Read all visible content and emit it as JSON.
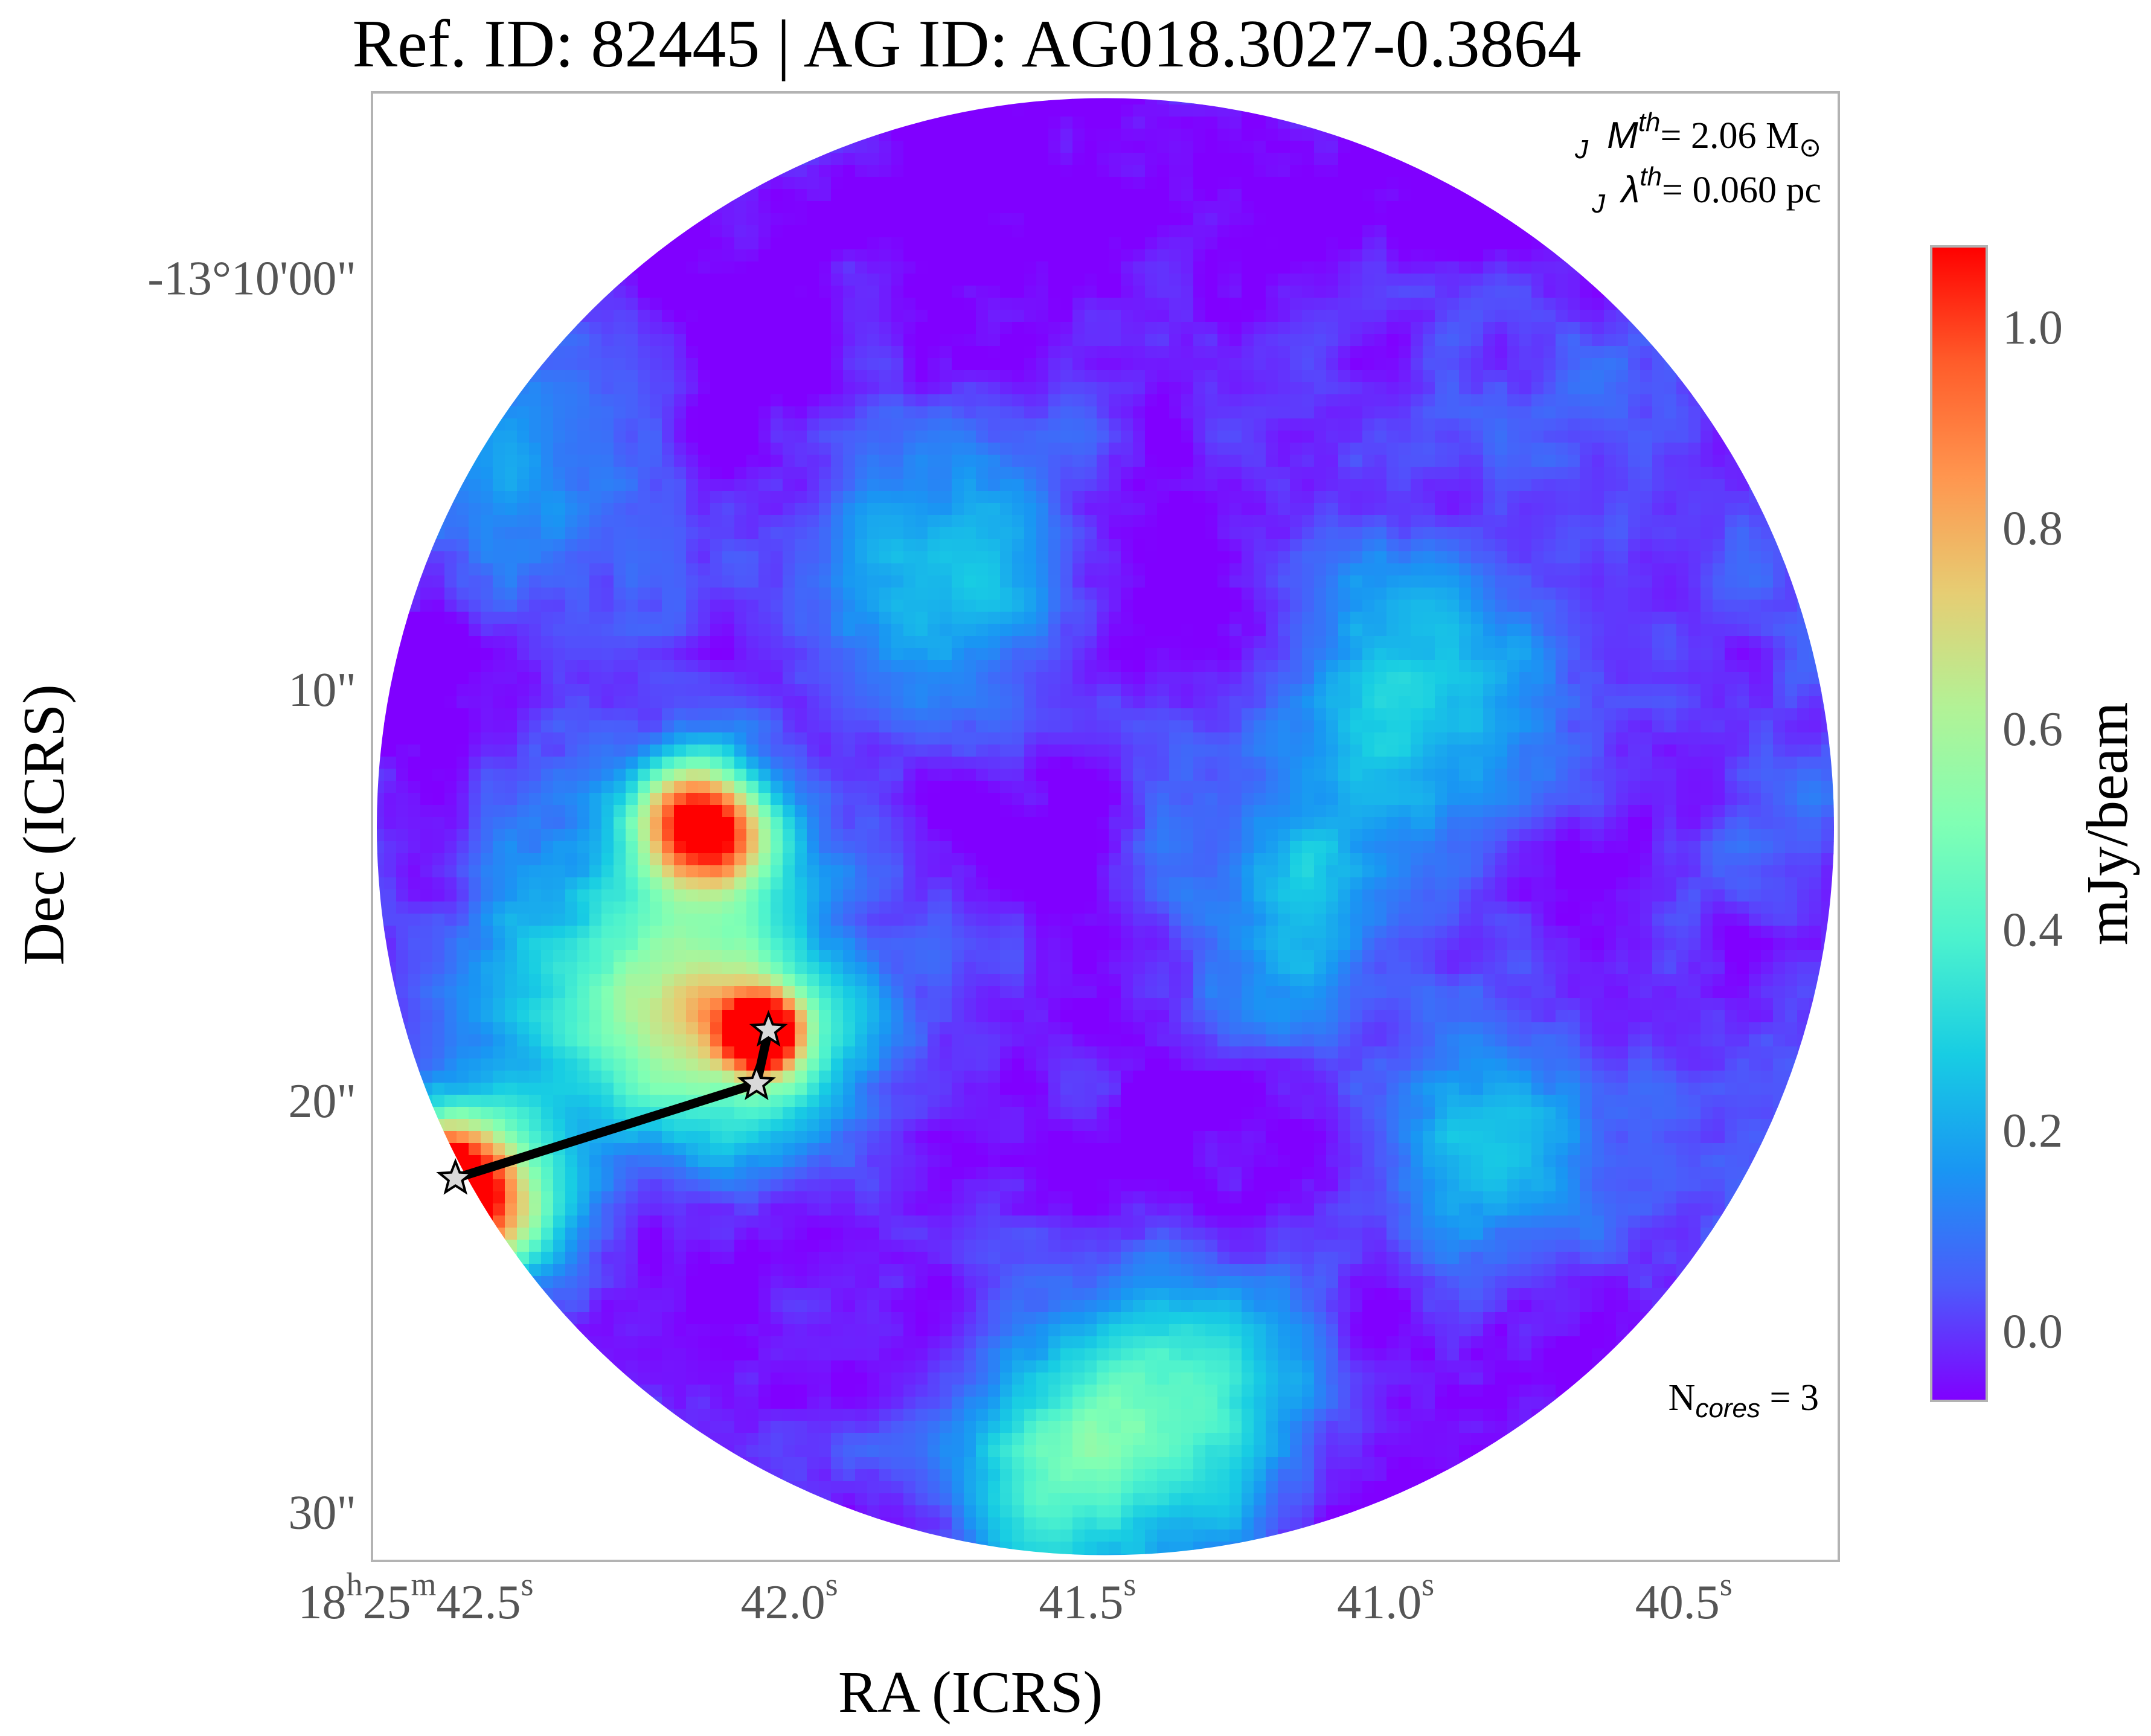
{
  "chart_data": {
    "type": "heatmap",
    "title": "Ref. ID: 82445 | AG ID: AG018.3027-0.3864",
    "xlabel": "RA (ICRS)",
    "ylabel": "Dec (ICRS)",
    "x_ticks": [
      {
        "value": 42.5,
        "parts": [
          {
            "t": "18",
            "sup": false
          },
          {
            "t": "h",
            "sup": true
          },
          {
            "t": "25",
            "sup": false
          },
          {
            "t": "m",
            "sup": true
          },
          {
            "t": "42.5",
            "sup": false
          },
          {
            "t": "s",
            "sup": true
          }
        ]
      },
      {
        "value": 42.0,
        "parts": [
          {
            "t": "42.0",
            "sup": false
          },
          {
            "t": "s",
            "sup": true
          }
        ]
      },
      {
        "value": 41.5,
        "parts": [
          {
            "t": "41.5",
            "sup": false
          },
          {
            "t": "s",
            "sup": true
          }
        ]
      },
      {
        "value": 41.0,
        "parts": [
          {
            "t": "41.0",
            "sup": false
          },
          {
            "t": "s",
            "sup": true
          }
        ]
      },
      {
        "value": 40.5,
        "parts": [
          {
            "t": "40.5",
            "sup": false
          },
          {
            "t": "s",
            "sup": true
          }
        ]
      }
    ],
    "y_ticks": [
      {
        "value": 0,
        "label": "-13°10'00\""
      },
      {
        "value": 10,
        "label": "10\""
      },
      {
        "value": 20,
        "label": "20\""
      },
      {
        "value": 30,
        "label": "30\""
      }
    ],
    "x_range": [
      42.7,
      40.24
    ],
    "y_range": [
      -4.5,
      31.2
    ],
    "colorbar": {
      "label": "mJy/beam",
      "range": [
        -0.07,
        1.08
      ],
      "ticks": [
        {
          "value": 0.0,
          "label": "0.0"
        },
        {
          "value": 0.2,
          "label": "0.2"
        },
        {
          "value": 0.4,
          "label": "0.4"
        },
        {
          "value": 0.6,
          "label": "0.6"
        },
        {
          "value": 0.8,
          "label": "0.8"
        },
        {
          "value": 1.0,
          "label": "1.0"
        }
      ],
      "colors": [
        "#8000ff",
        "#4b5cfb",
        "#1996f3",
        "#18cde3",
        "#4cf2ce",
        "#80ffb4",
        "#b2f296",
        "#e6cd73",
        "#ff964f",
        "#ff5c2a",
        "#ff0000"
      ]
    },
    "annotations": {
      "mj_sym": "M",
      "mj_sup": "th",
      "mj_sub": "J",
      "mj_value": "= 2.06 M",
      "mj_unit": "⊙",
      "lj_sym": "λ",
      "lj_sup": "th",
      "lj_sub": "J",
      "lj_value": "= 0.060 pc",
      "ncores_sym": "N",
      "ncores_sub": "cores",
      "ncores_value": " = 3"
    },
    "cores": [
      {
        "ra": 42.56,
        "dec": 21.9
      },
      {
        "ra": 42.055,
        "dec": 19.6
      },
      {
        "ra": 42.035,
        "dec": 18.3
      }
    ],
    "links": [
      [
        0,
        1
      ],
      [
        1,
        2
      ]
    ],
    "peaks": [
      {
        "ra": 42.6,
        "dec": 22.2,
        "value": 1.08,
        "sigma": 1.1
      },
      {
        "ra": 42.52,
        "dec": 22.4,
        "value": 0.78,
        "sigma": 1.6
      },
      {
        "ra": 42.045,
        "dec": 18.4,
        "value": 1.08,
        "sigma": 0.65
      },
      {
        "ra": 42.08,
        "dec": 18.8,
        "value": 0.45,
        "sigma": 2.2
      },
      {
        "ra": 42.12,
        "dec": 13.4,
        "value": 0.72,
        "sigma": 1.1
      },
      {
        "ra": 42.18,
        "dec": 13.0,
        "value": 0.55,
        "sigma": 1.0
      },
      {
        "ra": 42.22,
        "dec": 16.5,
        "value": 0.42,
        "sigma": 2.8
      },
      {
        "ra": 41.35,
        "dec": 27.0,
        "value": 0.42,
        "sigma": 2.4
      },
      {
        "ra": 41.55,
        "dec": 29.5,
        "value": 0.35,
        "sigma": 2.0
      },
      {
        "ra": 40.95,
        "dec": 10.5,
        "value": 0.3,
        "sigma": 2.5
      },
      {
        "ra": 40.8,
        "dec": 21.0,
        "value": 0.28,
        "sigma": 2.0
      },
      {
        "ra": 41.75,
        "dec": 7.5,
        "value": 0.3,
        "sigma": 2.5
      },
      {
        "ra": 41.15,
        "dec": 15.5,
        "value": 0.25,
        "sigma": 2.5
      },
      {
        "ra": 42.45,
        "dec": 4.5,
        "value": 0.2,
        "sigma": 2.8
      }
    ]
  }
}
